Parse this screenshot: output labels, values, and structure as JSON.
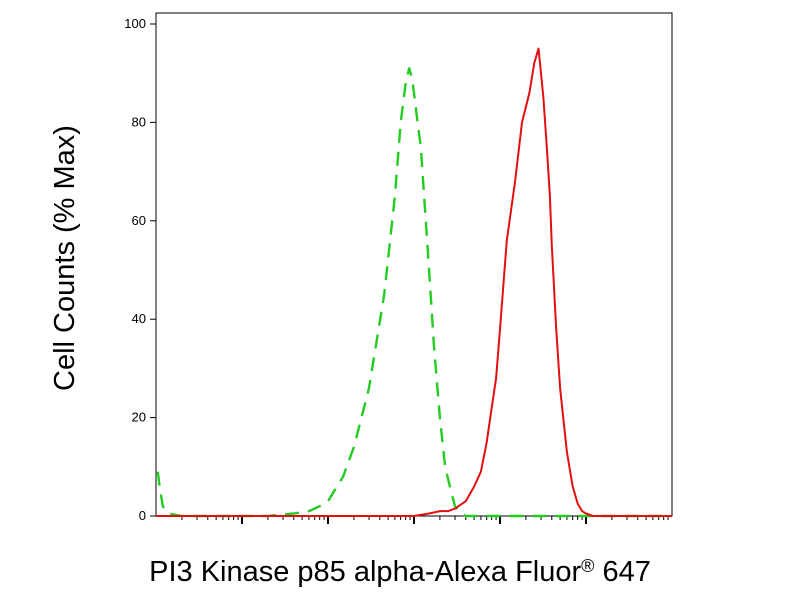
{
  "chart_data": {
    "type": "line",
    "xlabel_main": "PI3 Kinase p85 alpha-Alexa Fluor",
    "xlabel_sup": "®",
    "xlabel_tail": " 647",
    "ylabel": "Cell Counts (% Max)",
    "x_scale": "log",
    "xlim": [
      1,
      1000000
    ],
    "ylim": [
      0,
      100
    ],
    "yticks": [
      0,
      20,
      40,
      60,
      80,
      100
    ],
    "ytick_labels": [
      "0",
      "20",
      "40",
      "60",
      "80",
      "100"
    ],
    "legend": "none",
    "grid": false,
    "series": [
      {
        "style": "dashed",
        "color": "#22cc22",
        "x": [
          1.05,
          1.1,
          1.2,
          1.4,
          2,
          4,
          6,
          10,
          20,
          40,
          60,
          80,
          100,
          150,
          200,
          300,
          450,
          600,
          700,
          800,
          880,
          950,
          1000,
          1100,
          1200,
          1300,
          1500,
          1700,
          2000,
          2300,
          2700,
          3000,
          3500,
          4000,
          5000,
          7000,
          10000,
          20000,
          50000,
          100000,
          200000,
          500000,
          1000000
        ],
        "y": [
          9,
          6,
          2,
          0.5,
          0,
          0,
          0,
          0,
          0,
          0.5,
          1,
          2,
          3,
          8,
          14,
          26,
          45,
          65,
          80,
          88,
          91,
          89,
          86,
          80,
          75,
          66,
          50,
          35,
          20,
          10,
          5,
          2,
          0.5,
          0,
          0,
          0,
          0,
          0,
          0,
          0,
          0,
          0,
          0
        ]
      },
      {
        "style": "solid",
        "color": "#e01010",
        "x": [
          1,
          100,
          1000,
          1500,
          2000,
          2500,
          3000,
          4000,
          5000,
          6000,
          7000,
          8000,
          9000,
          10000,
          12000,
          15000,
          18000,
          22000,
          25000,
          28000,
          30000,
          32000,
          35000,
          38000,
          40000,
          45000,
          50000,
          60000,
          70000,
          80000,
          90000,
          100000,
          120000,
          150000,
          200000,
          300000,
          500000,
          1000000
        ],
        "y": [
          0,
          0,
          0,
          0.5,
          1,
          1,
          1.5,
          3,
          6,
          9,
          15,
          22,
          28,
          38,
          56,
          68,
          80,
          86,
          92,
          95,
          90,
          85,
          75,
          65,
          55,
          38,
          26,
          13,
          6,
          2.5,
          1,
          0.5,
          0,
          0,
          0,
          0,
          0,
          0
        ]
      }
    ]
  }
}
